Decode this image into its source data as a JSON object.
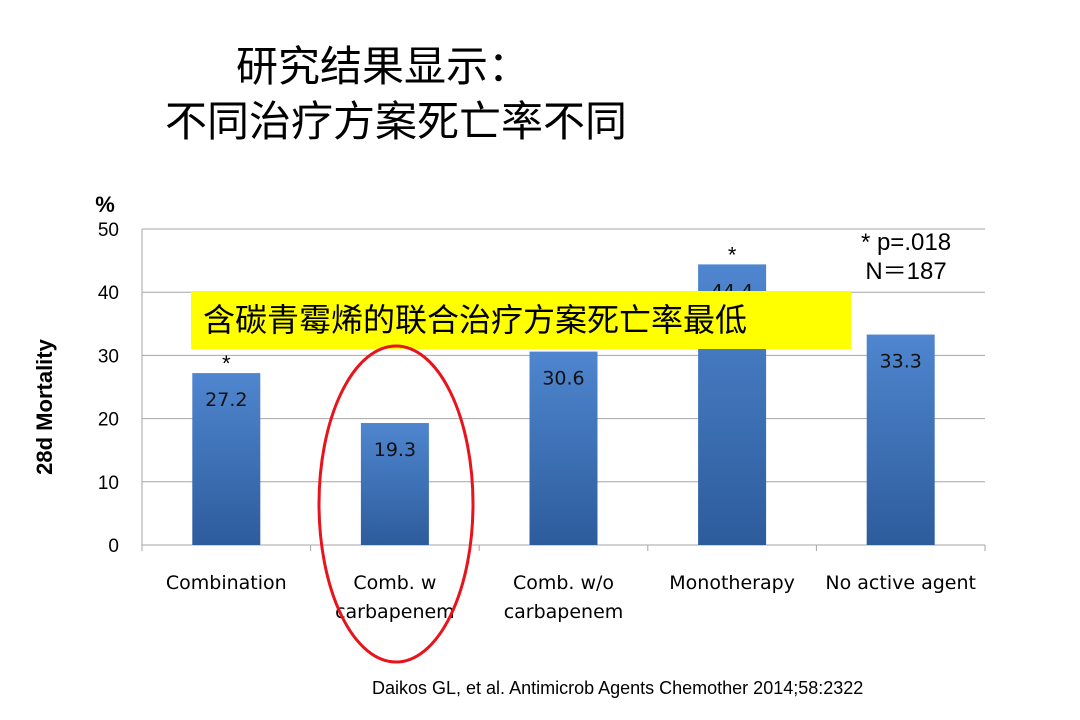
{
  "slide": {
    "title_line1": "研究结果显示：",
    "title_line2": "不同治疗方案死亡率不同",
    "stats_line1": "* p=.018",
    "stats_line2": "N＝187",
    "callout": "含碳青霉烯的联合治疗方案死亡率最低",
    "citation": "Daikos GL, et al. Antimicrob Agents Chemother 2014;58:2322"
  },
  "chart_data": {
    "type": "bar",
    "title": "",
    "xlabel": "",
    "ylabel": "28d Mortality",
    "y_unit": "%",
    "ylim": [
      0,
      50
    ],
    "yticks": [
      0,
      10,
      20,
      30,
      40,
      50
    ],
    "grid": true,
    "categories": [
      [
        "Combination"
      ],
      [
        "Comb. w",
        "carbapenem"
      ],
      [
        "Comb. w/o",
        "carbapenem"
      ],
      [
        "Monotherapy"
      ],
      [
        "No active agent"
      ]
    ],
    "values": [
      27.2,
      19.3,
      30.6,
      44.4,
      33.3
    ],
    "data_labels": [
      "27.2",
      "19.3",
      "30.6",
      "44.4",
      "33.3"
    ],
    "significance": [
      "*",
      "",
      "",
      "*",
      ""
    ],
    "colors": {
      "bar_top": "#4f86cf",
      "bar_bottom": "#2d5c9c",
      "grid": "#a6a6a6",
      "highlight": "#e8141c",
      "callout_bg": "#ffff00"
    },
    "highlighted_category_index": 1
  }
}
